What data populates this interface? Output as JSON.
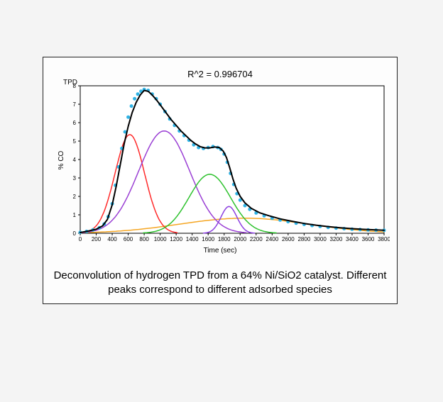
{
  "caption": "Deconvolution of hydrogen TPD from a 64% Ni/SiO2 catalyst.  Different peaks correspond to different adsorbed species",
  "chart": {
    "type": "line",
    "title_top": "R^2 = 0.996704",
    "tpd_label": "TPD",
    "x_label": "Time (sec)",
    "y_label": "% CO",
    "background": "#ffffff",
    "axis_color": "#000000",
    "grid_color": "#e8e8e8",
    "xlim": [
      0,
      3800
    ],
    "ylim": [
      0,
      8
    ],
    "xticks": [
      0,
      200,
      400,
      600,
      800,
      1000,
      1200,
      1400,
      1600,
      1800,
      2000,
      2200,
      2400,
      2600,
      2800,
      3000,
      3200,
      3400,
      3600,
      3800
    ],
    "yticks": [
      0,
      1,
      2,
      3,
      4,
      5,
      6,
      7,
      8
    ],
    "tick_fontsize": 8,
    "title_fontsize": 13,
    "caption_fontsize": 15,
    "series": {
      "data_points": {
        "color": "#2fb3e5",
        "type": "scatter",
        "marker_size": 2.5,
        "points": [
          [
            0,
            0.05
          ],
          [
            80,
            0.1
          ],
          [
            160,
            0.18
          ],
          [
            240,
            0.3
          ],
          [
            300,
            0.5
          ],
          [
            350,
            0.9
          ],
          [
            400,
            1.6
          ],
          [
            440,
            2.6
          ],
          [
            480,
            3.6
          ],
          [
            520,
            4.6
          ],
          [
            560,
            5.5
          ],
          [
            600,
            6.3
          ],
          [
            640,
            6.9
          ],
          [
            680,
            7.3
          ],
          [
            720,
            7.55
          ],
          [
            760,
            7.7
          ],
          [
            800,
            7.8
          ],
          [
            850,
            7.75
          ],
          [
            900,
            7.55
          ],
          [
            950,
            7.3
          ],
          [
            1000,
            7.0
          ],
          [
            1060,
            6.6
          ],
          [
            1120,
            6.2
          ],
          [
            1180,
            5.85
          ],
          [
            1240,
            5.55
          ],
          [
            1300,
            5.3
          ],
          [
            1360,
            5.05
          ],
          [
            1420,
            4.8
          ],
          [
            1480,
            4.65
          ],
          [
            1540,
            4.6
          ],
          [
            1600,
            4.65
          ],
          [
            1660,
            4.7
          ],
          [
            1720,
            4.65
          ],
          [
            1760,
            4.55
          ],
          [
            1800,
            4.3
          ],
          [
            1840,
            3.85
          ],
          [
            1880,
            3.25
          ],
          [
            1920,
            2.65
          ],
          [
            1960,
            2.15
          ],
          [
            2000,
            1.8
          ],
          [
            2060,
            1.5
          ],
          [
            2120,
            1.3
          ],
          [
            2200,
            1.1
          ],
          [
            2300,
            0.95
          ],
          [
            2400,
            0.82
          ],
          [
            2500,
            0.72
          ],
          [
            2600,
            0.63
          ],
          [
            2700,
            0.55
          ],
          [
            2800,
            0.48
          ],
          [
            2900,
            0.42
          ],
          [
            3000,
            0.37
          ],
          [
            3100,
            0.32
          ],
          [
            3200,
            0.28
          ],
          [
            3300,
            0.25
          ],
          [
            3400,
            0.22
          ],
          [
            3500,
            0.2
          ],
          [
            3600,
            0.18
          ],
          [
            3700,
            0.17
          ],
          [
            3800,
            0.16
          ]
        ]
      },
      "fit": {
        "color": "#000000",
        "line_width": 2,
        "points": [
          [
            0,
            0.04
          ],
          [
            100,
            0.12
          ],
          [
            200,
            0.22
          ],
          [
            280,
            0.4
          ],
          [
            340,
            0.75
          ],
          [
            400,
            1.55
          ],
          [
            450,
            2.55
          ],
          [
            500,
            3.7
          ],
          [
            550,
            4.85
          ],
          [
            600,
            5.8
          ],
          [
            650,
            6.55
          ],
          [
            700,
            7.1
          ],
          [
            750,
            7.5
          ],
          [
            800,
            7.75
          ],
          [
            850,
            7.7
          ],
          [
            900,
            7.5
          ],
          [
            960,
            7.2
          ],
          [
            1020,
            6.85
          ],
          [
            1080,
            6.5
          ],
          [
            1140,
            6.15
          ],
          [
            1200,
            5.85
          ],
          [
            1260,
            5.55
          ],
          [
            1320,
            5.3
          ],
          [
            1380,
            5.05
          ],
          [
            1440,
            4.85
          ],
          [
            1500,
            4.7
          ],
          [
            1560,
            4.63
          ],
          [
            1620,
            4.63
          ],
          [
            1680,
            4.68
          ],
          [
            1740,
            4.65
          ],
          [
            1790,
            4.45
          ],
          [
            1830,
            4.1
          ],
          [
            1870,
            3.55
          ],
          [
            1910,
            2.95
          ],
          [
            1950,
            2.45
          ],
          [
            2000,
            2.0
          ],
          [
            2060,
            1.65
          ],
          [
            2140,
            1.35
          ],
          [
            2240,
            1.12
          ],
          [
            2360,
            0.95
          ],
          [
            2500,
            0.78
          ],
          [
            2650,
            0.65
          ],
          [
            2800,
            0.53
          ],
          [
            2950,
            0.44
          ],
          [
            3100,
            0.36
          ],
          [
            3250,
            0.3
          ],
          [
            3400,
            0.25
          ],
          [
            3550,
            0.21
          ],
          [
            3700,
            0.18
          ],
          [
            3800,
            0.16
          ]
        ]
      },
      "peak_red": {
        "color": "#ff2a2a",
        "line_width": 1.5,
        "gaussian": {
          "center": 620,
          "height": 5.35,
          "sigma": 185
        }
      },
      "peak_purple1": {
        "color": "#9a3fd4",
        "line_width": 1.5,
        "gaussian": {
          "center": 1050,
          "height": 5.55,
          "sigma": 320
        }
      },
      "peak_green": {
        "color": "#2fc22f",
        "line_width": 1.5,
        "gaussian": {
          "center": 1620,
          "height": 3.2,
          "sigma": 260
        }
      },
      "peak_purple2": {
        "color": "#8c3fe0",
        "line_width": 1.5,
        "gaussian": {
          "center": 1860,
          "height": 1.45,
          "sigma": 100
        }
      },
      "peak_orange": {
        "color": "#f5a623",
        "line_width": 1.5,
        "gaussian": {
          "center": 2050,
          "height": 0.82,
          "sigma": 800
        }
      }
    }
  }
}
